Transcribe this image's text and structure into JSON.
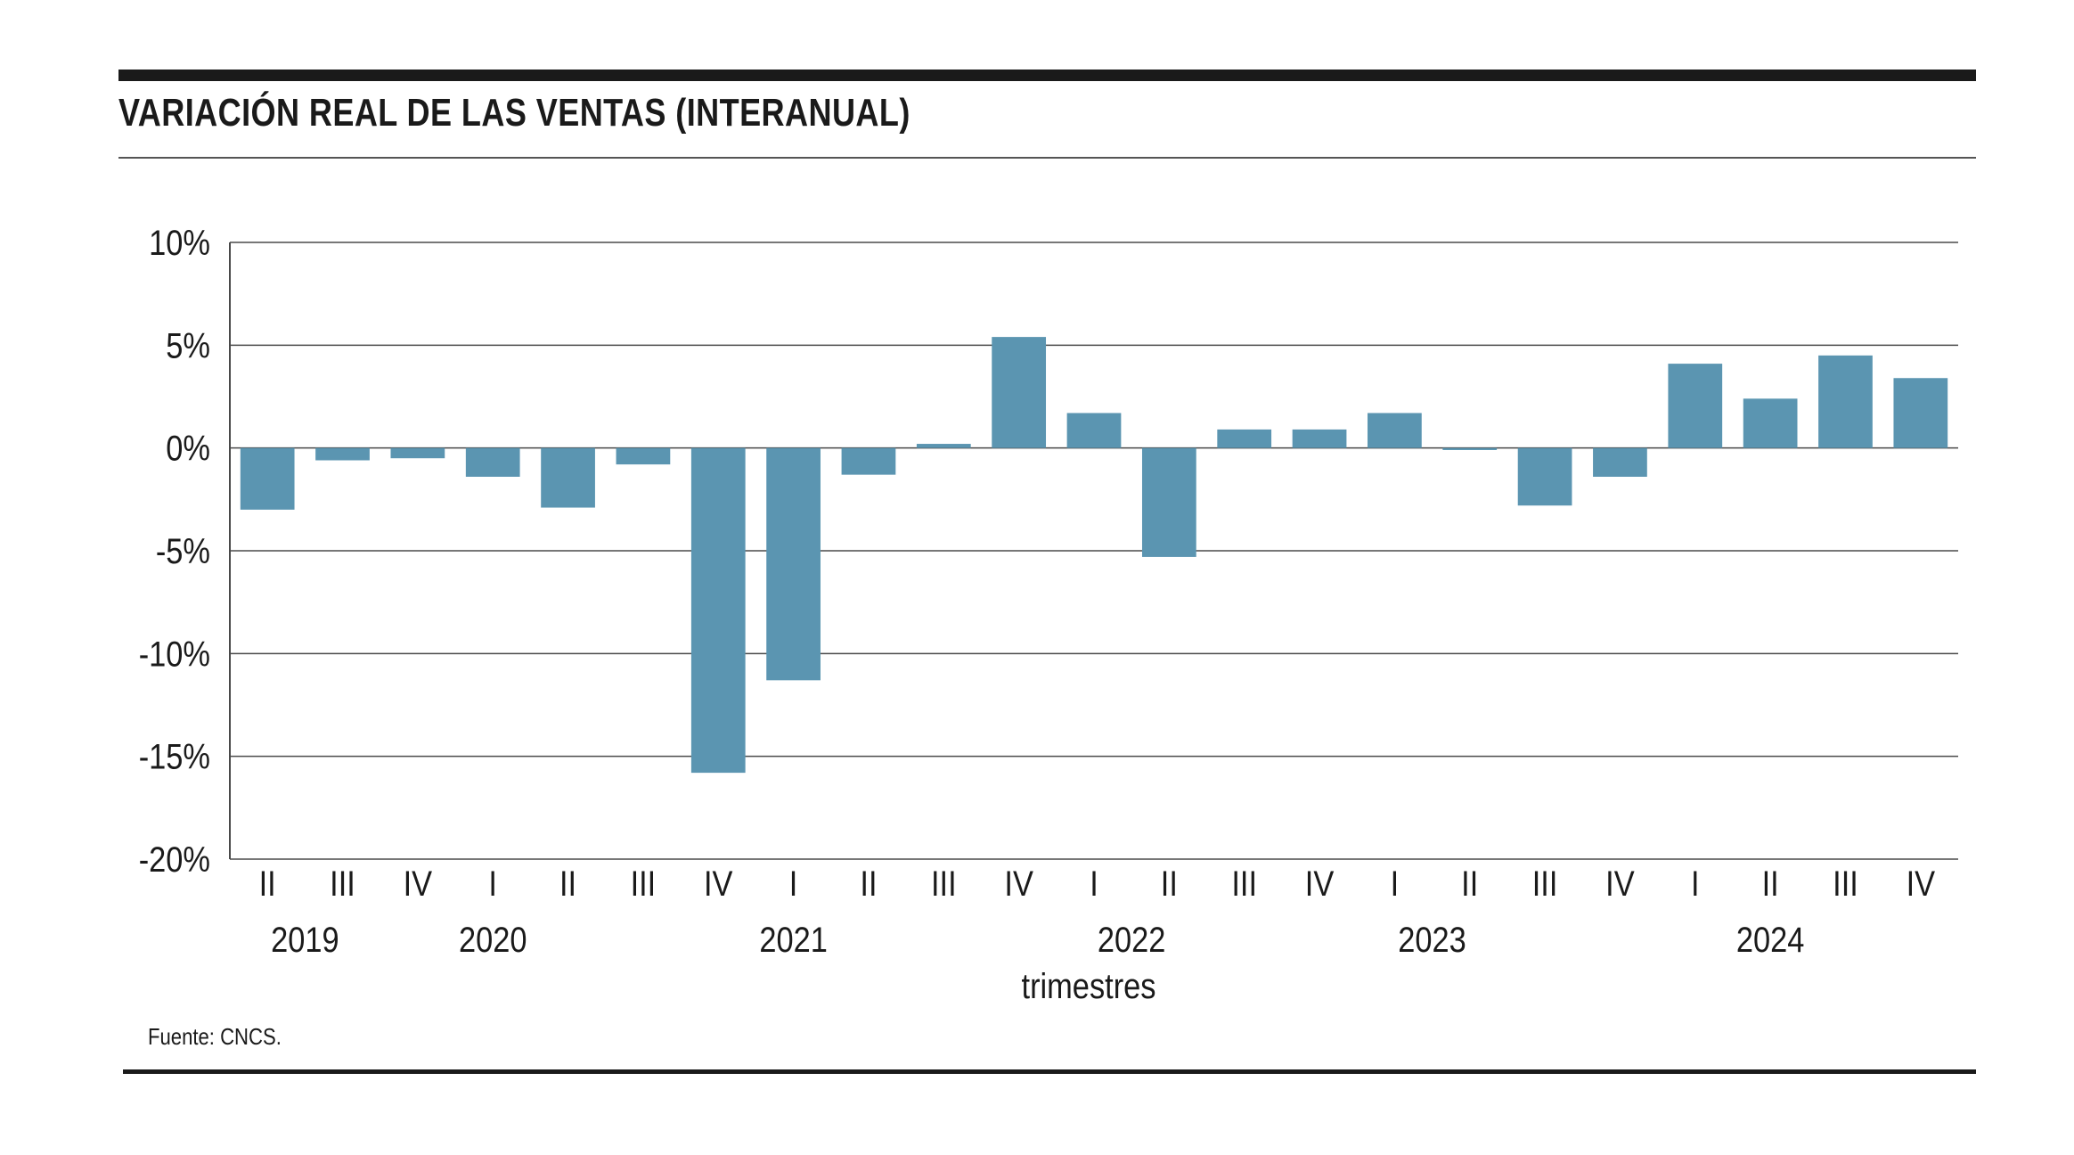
{
  "title": "VARIACIÓN REAL DE LAS VENTAS (INTERANUAL)",
  "source": "Fuente: CNCS.",
  "colors": {
    "bar": "#5b95b1",
    "grid": "#4a4a4a",
    "rule": "#1a1a1a"
  },
  "chart_data": {
    "type": "bar",
    "title": "VARIACIÓN REAL DE LAS VENTAS (INTERANUAL)",
    "xlabel": "trimestres",
    "ylabel": "",
    "ylim": [
      -20,
      10
    ],
    "yticks": [
      10,
      5,
      0,
      -5,
      -10,
      -15,
      -20
    ],
    "ytick_labels": [
      "10%",
      "5%",
      "0%",
      "-5%",
      "-10%",
      "-15%",
      "-20%"
    ],
    "grid": true,
    "categories": [
      "II",
      "III",
      "IV",
      "I",
      "II",
      "III",
      "IV",
      "I",
      "II",
      "III",
      "IV",
      "I",
      "II",
      "III",
      "IV",
      "I",
      "II",
      "III",
      "IV",
      "I",
      "II",
      "III",
      "IV"
    ],
    "years": [
      {
        "label": "2019",
        "start": 0,
        "end": 1
      },
      {
        "label": "2020",
        "start": 2,
        "end": 4
      },
      {
        "label": "2021",
        "start": 5,
        "end": 9
      },
      {
        "label": "2022",
        "start": 10,
        "end": 13
      },
      {
        "label": "2023",
        "start": 14,
        "end": 17
      },
      {
        "label": "2024",
        "start": 18,
        "end": 22
      }
    ],
    "values": [
      -3.0,
      -0.6,
      -0.5,
      -1.4,
      -2.9,
      -0.8,
      -15.8,
      -11.3,
      -1.3,
      0.2,
      5.4,
      1.7,
      -5.3,
      0.9,
      0.9,
      1.7,
      -0.1,
      -2.8,
      -1.4,
      4.1,
      2.4,
      4.5,
      3.4
    ]
  }
}
